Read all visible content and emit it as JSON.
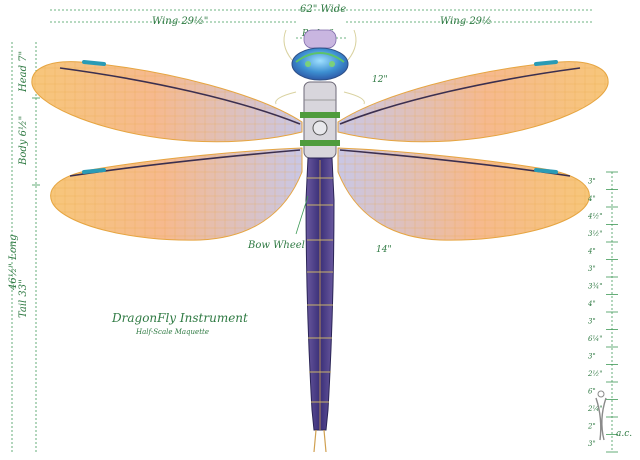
{
  "dimensions": {
    "overall_width": "62\" Wide",
    "wing_left": "Wing 29½\"",
    "wing_right": "Wing 29½",
    "body_width": "Body 6",
    "head": "Head 7\"",
    "body": "Body 6½\"",
    "overall_length": "46½\" Long",
    "tail": "Tail 33\"",
    "wing_span_upper": "12\"",
    "wing_span_lower": "14\""
  },
  "callout": {
    "bow_wheel": "Bow Wheel"
  },
  "title": {
    "main": "DragonFly Instrument",
    "sub": "Half-Scale Maquette"
  },
  "scale_bar": {
    "segments": [
      "3\"",
      "4\"",
      "4½\"",
      "3½\"",
      "4\"",
      "3\"",
      "3¾\"",
      "4\"",
      "3\"",
      "6¼\"",
      "3\"",
      "2½\"",
      "6\"",
      "2¼\"",
      "2\"",
      "3\""
    ],
    "segments_rendered": [
      "3\"",
      "4\"",
      "4½\"",
      "3½\"",
      "4\"",
      "3\"",
      "3¾\"",
      "4\"",
      "3\"",
      "6¼\"",
      "3\"",
      "2½\"",
      "6\"",
      "2¼\"",
      "2\"",
      "3\""
    ]
  },
  "signature": "a.c."
}
